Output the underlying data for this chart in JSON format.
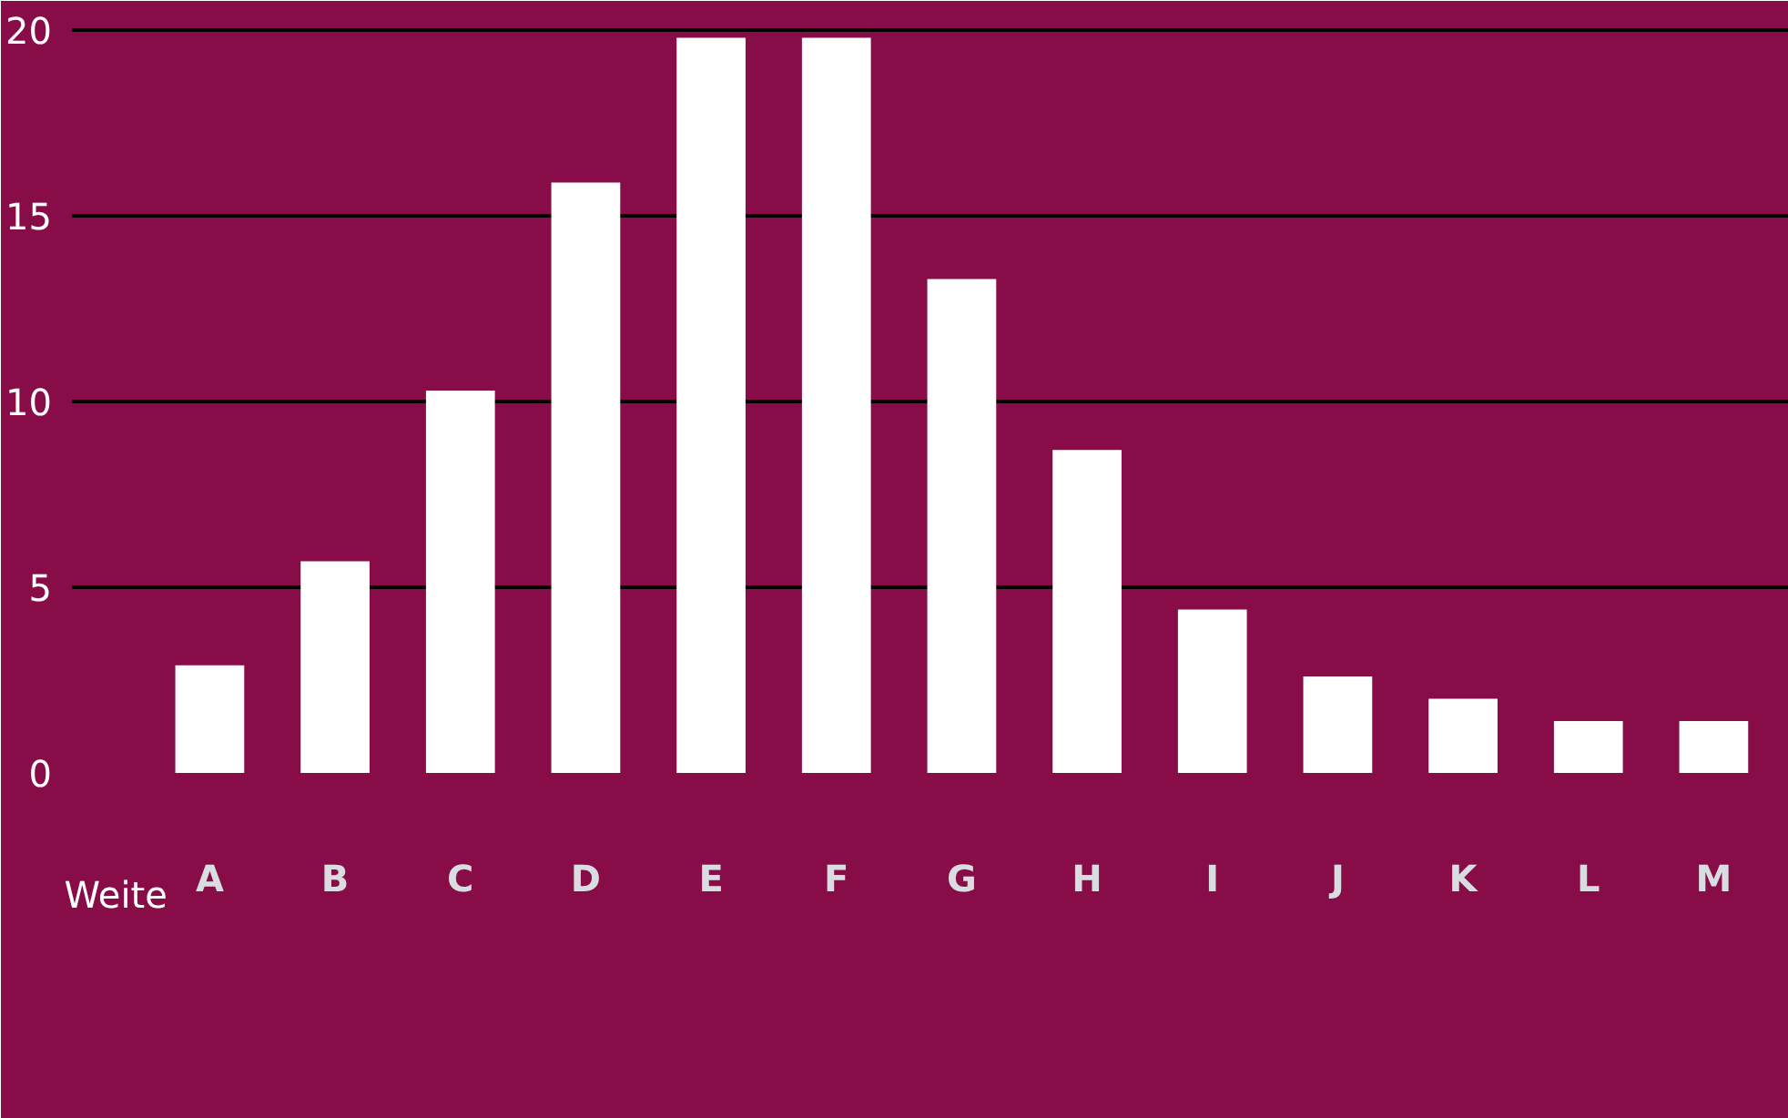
{
  "chart_data": {
    "type": "bar",
    "xlabel": "Weite",
    "categories": [
      "A",
      "B",
      "C",
      "D",
      "E",
      "F",
      "G",
      "H",
      "I",
      "J",
      "K",
      "L",
      "M"
    ],
    "values": [
      2.9,
      5.7,
      10.3,
      15.9,
      19.8,
      19.8,
      13.3,
      8.7,
      4.4,
      2.6,
      2.0,
      1.4,
      1.4
    ],
    "color": "#ffffff",
    "ylim": [
      0,
      20
    ],
    "yticks": [
      0,
      5,
      10,
      15,
      20
    ],
    "grid": "y"
  }
}
